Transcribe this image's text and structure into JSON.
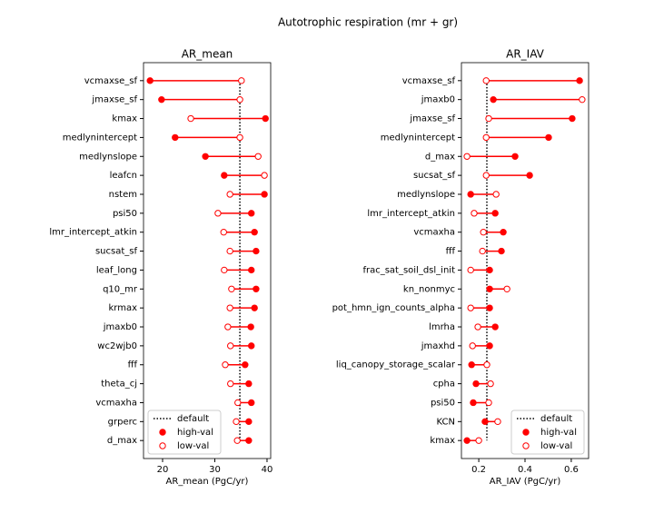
{
  "title": "Autotrophic respiration (mr + gr)",
  "chart_data": [
    {
      "type": "dumbbell",
      "title": "AR_mean",
      "xlabel": "AR_mean (PgC/yr)",
      "categories": [
        "vcmaxse_sf",
        "jmaxse_sf",
        "kmax",
        "medlynintercept",
        "medlynslope",
        "leafcn",
        "nstem",
        "psi50",
        "lmr_intercept_atkin",
        "sucsat_sf",
        "leaf_long",
        "q10_mr",
        "krmax",
        "jmaxb0",
        "wc2wjb0",
        "fff",
        "theta_cj",
        "vcmaxha",
        "grperc",
        "d_max"
      ],
      "series": [
        {
          "name": "high-val",
          "color": "#ff0000",
          "marker": "filled",
          "values": [
            17.6,
            19.8,
            39.7,
            22.4,
            28.2,
            31.8,
            39.5,
            37.0,
            37.6,
            37.9,
            37.0,
            37.9,
            37.6,
            36.9,
            37.0,
            35.8,
            36.5,
            37.0,
            36.5,
            36.5
          ]
        },
        {
          "name": "low-val",
          "color": "#ff0000",
          "marker": "open",
          "values": [
            35.1,
            34.8,
            25.4,
            34.8,
            38.3,
            39.5,
            32.9,
            30.6,
            31.7,
            32.9,
            31.8,
            33.2,
            32.9,
            32.5,
            33.0,
            32.0,
            33.0,
            34.4,
            34.1,
            34.3
          ]
        }
      ],
      "default": {
        "name": "default",
        "value": 34.8
      },
      "xlim": [
        16.35,
        40.7
      ],
      "xticks": [
        20,
        30,
        40
      ],
      "legend": "lower left"
    },
    {
      "type": "dumbbell",
      "title": "AR_IAV",
      "xlabel": "AR_IAV (PgC/yr)",
      "categories": [
        "vcmaxse_sf",
        "jmaxb0",
        "jmaxse_sf",
        "medlynintercept",
        "d_max",
        "sucsat_sf",
        "medlynslope",
        "lmr_intercept_atkin",
        "vcmaxha",
        "fff",
        "frac_sat_soil_dsl_init",
        "kn_nonmyc",
        "pot_hmn_ign_counts_alpha",
        "lmrha",
        "jmaxhd",
        "liq_canopy_storage_scalar",
        "cpha",
        "psi50",
        "KCN",
        "kmax"
      ],
      "series": [
        {
          "name": "high-val",
          "color": "#ff0000",
          "marker": "filled",
          "values": [
            0.636,
            0.263,
            0.604,
            0.502,
            0.357,
            0.42,
            0.165,
            0.271,
            0.306,
            0.298,
            0.247,
            0.247,
            0.247,
            0.271,
            0.247,
            0.169,
            0.188,
            0.176,
            0.227,
            0.149
          ]
        },
        {
          "name": "low-val",
          "color": "#ff0000",
          "marker": "open",
          "values": [
            0.232,
            0.647,
            0.243,
            0.232,
            0.149,
            0.232,
            0.275,
            0.18,
            0.22,
            0.216,
            0.165,
            0.322,
            0.165,
            0.196,
            0.173,
            0.235,
            0.251,
            0.243,
            0.282,
            0.2
          ]
        }
      ],
      "default": {
        "name": "default",
        "value": 0.235
      },
      "xlim": [
        0.125,
        0.675
      ],
      "xticks": [
        0.2,
        0.4,
        0.6
      ],
      "legend": "lower right"
    }
  ]
}
